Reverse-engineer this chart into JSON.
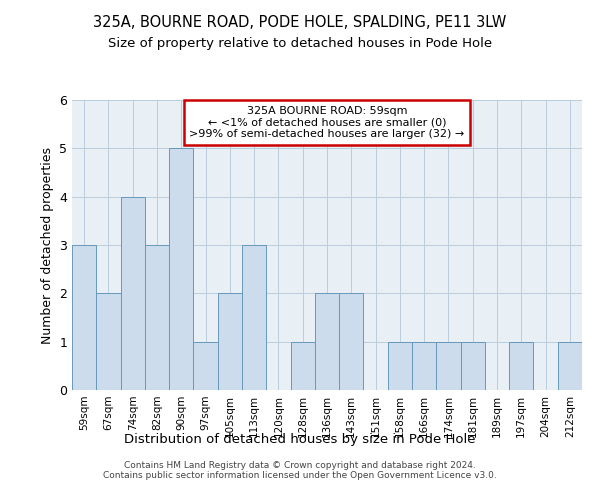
{
  "title": "325A, BOURNE ROAD, PODE HOLE, SPALDING, PE11 3LW",
  "subtitle": "Size of property relative to detached houses in Pode Hole",
  "xlabel": "Distribution of detached houses by size in Pode Hole",
  "ylabel": "Number of detached properties",
  "categories": [
    "59sqm",
    "67sqm",
    "74sqm",
    "82sqm",
    "90sqm",
    "97sqm",
    "105sqm",
    "113sqm",
    "120sqm",
    "128sqm",
    "136sqm",
    "143sqm",
    "151sqm",
    "158sqm",
    "166sqm",
    "174sqm",
    "181sqm",
    "189sqm",
    "197sqm",
    "204sqm",
    "212sqm"
  ],
  "values": [
    3,
    2,
    4,
    3,
    5,
    1,
    2,
    3,
    0,
    1,
    2,
    2,
    0,
    1,
    1,
    1,
    1,
    0,
    1,
    0,
    1
  ],
  "bar_color": "#ccdcec",
  "bar_edge_color": "#6699bb",
  "highlight_box_color": "#cc0000",
  "annotation_lines": [
    "325A BOURNE ROAD: 59sqm",
    "← <1% of detached houses are smaller (0)",
    ">99% of semi-detached houses are larger (32) →"
  ],
  "ylim": [
    0,
    6
  ],
  "yticks": [
    0,
    1,
    2,
    3,
    4,
    5,
    6
  ],
  "grid_color": "#bbccdd",
  "background_color": "#e8eff5",
  "footer_line1": "Contains HM Land Registry data © Crown copyright and database right 2024.",
  "footer_line2": "Contains public sector information licensed under the Open Government Licence v3.0."
}
